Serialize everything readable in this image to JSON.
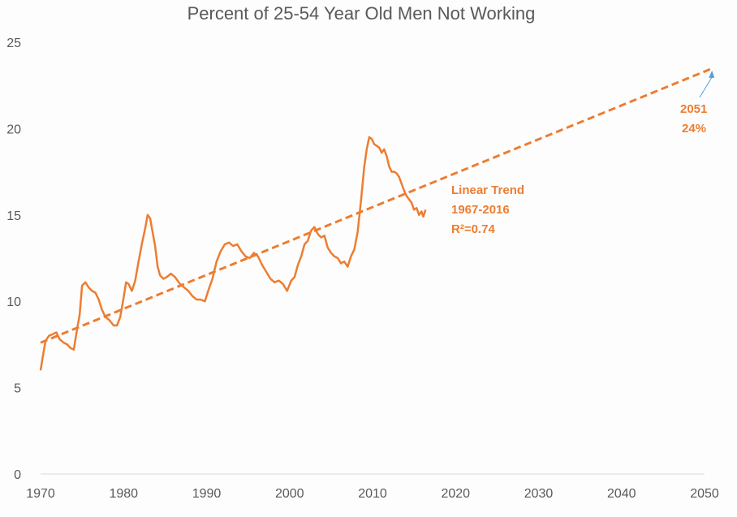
{
  "chart_data": {
    "type": "line",
    "title": "Percent of 25-54 Year Old Men Not Working",
    "xlabel": "",
    "ylabel": "",
    "xlim": [
      1970,
      2050
    ],
    "ylim": [
      0,
      25
    ],
    "x_ticks": [
      "1970",
      "1980",
      "1990",
      "2000",
      "2010",
      "2020",
      "2030",
      "2040",
      "2050"
    ],
    "y_ticks": [
      "0",
      "5",
      "10",
      "15",
      "20",
      "25"
    ],
    "grid": false,
    "legend": "none",
    "colors": {
      "series": "#ED7D31",
      "arrow": "#5B9BD5",
      "text": "#595959",
      "axis": "#D9D9D9"
    },
    "series": [
      {
        "x": [
          1970.0,
          1970.3,
          1970.6,
          1971.0,
          1971.5,
          1971.9,
          1972.3,
          1972.8,
          1973.2,
          1973.6,
          1974.0,
          1974.4,
          1974.7,
          1975.0,
          1975.4,
          1975.8,
          1976.2,
          1976.6,
          1977.0,
          1977.4,
          1977.8,
          1978.3,
          1978.8,
          1979.2,
          1979.6,
          1980.0,
          1980.3,
          1980.6,
          1981.0,
          1981.4,
          1981.8,
          1982.2,
          1982.6,
          1982.9,
          1983.2,
          1983.5,
          1983.8,
          1984.1,
          1984.4,
          1984.8,
          1985.2,
          1985.7,
          1986.2,
          1986.8,
          1987.3,
          1987.8,
          1988.3,
          1988.8,
          1989.3,
          1989.8,
          1990.2,
          1990.7,
          1991.2,
          1991.7,
          1992.2,
          1992.7,
          1993.2,
          1993.7,
          1994.2,
          1994.7,
          1995.2,
          1995.7,
          1996.2,
          1996.7,
          1997.2,
          1997.7,
          1998.2,
          1998.7,
          1999.2,
          1999.7,
          2000.2,
          2000.6,
          2001.0,
          2001.4,
          2001.8,
          2002.2,
          2002.6,
          2003.0,
          2003.4,
          2003.8,
          2004.2,
          2004.6,
          2005.0,
          2005.4,
          2005.8,
          2006.2,
          2006.6,
          2007.0,
          2007.4,
          2007.8,
          2008.2,
          2008.6,
          2009.0,
          2009.3,
          2009.6,
          2009.9,
          2010.2,
          2010.5,
          2010.8,
          2011.1,
          2011.4,
          2011.7,
          2012.0,
          2012.3,
          2012.6,
          2012.9,
          2013.2,
          2013.5,
          2013.8,
          2014.1,
          2014.4,
          2014.7,
          2015.0,
          2015.3,
          2015.6,
          2015.9,
          2016.1,
          2016.4
        ],
        "values": [
          6.0,
          6.9,
          7.7,
          8.0,
          8.1,
          8.2,
          7.8,
          7.6,
          7.5,
          7.3,
          7.2,
          8.4,
          9.2,
          10.9,
          11.1,
          10.8,
          10.6,
          10.5,
          10.1,
          9.5,
          9.1,
          8.9,
          8.6,
          8.6,
          9.1,
          10.2,
          11.1,
          11.0,
          10.6,
          11.2,
          12.3,
          13.3,
          14.2,
          15.0,
          14.8,
          14.0,
          13.2,
          12.0,
          11.5,
          11.3,
          11.4,
          11.6,
          11.4,
          11.0,
          10.8,
          10.6,
          10.3,
          10.1,
          10.1,
          10.0,
          10.6,
          11.3,
          12.3,
          12.9,
          13.3,
          13.4,
          13.2,
          13.3,
          12.9,
          12.6,
          12.5,
          12.8,
          12.6,
          12.1,
          11.7,
          11.3,
          11.1,
          11.2,
          11.0,
          10.6,
          11.2,
          11.4,
          12.1,
          12.6,
          13.3,
          13.5,
          14.1,
          14.3,
          13.9,
          13.7,
          13.8,
          13.1,
          12.8,
          12.6,
          12.5,
          12.2,
          12.3,
          12.0,
          12.6,
          13.0,
          14.0,
          15.8,
          17.8,
          18.8,
          19.5,
          19.4,
          19.1,
          19.0,
          18.9,
          18.6,
          18.8,
          18.4,
          17.8,
          17.5,
          17.5,
          17.4,
          17.2,
          16.8,
          16.4,
          16.1,
          15.9,
          15.7,
          15.3,
          15.4,
          15.0,
          15.2,
          14.9,
          15.3
        ]
      },
      {
        "x": [
          1970,
          2051
        ],
        "values": [
          7.6,
          23.5
        ],
        "dashed": true
      }
    ],
    "annotations": {
      "trend": [
        "Linear Trend",
        "1967-2016",
        "R²=0.74"
      ],
      "projection_year": "2051",
      "projection_value": "24%"
    }
  }
}
